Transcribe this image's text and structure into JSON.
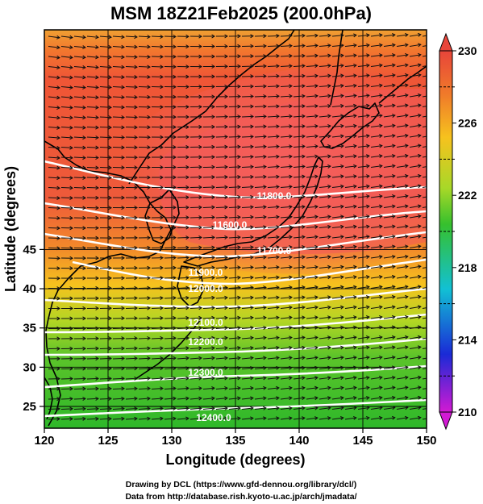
{
  "title": "MSM 18Z21Feb2025 (200.0hPa)",
  "axes": {
    "xlabel": "Longitude (degrees)",
    "ylabel": "Latitude  (degrees)",
    "x_ticks": [
      "120",
      "125",
      "130",
      "135",
      "140",
      "145",
      "150"
    ],
    "y_ticks": [
      "45",
      "40",
      "35",
      "30",
      "25"
    ]
  },
  "colorbar": {
    "labels": [
      "230",
      "226",
      "222",
      "218",
      "214",
      "210"
    ],
    "colors": {
      "c230": "#e8453a",
      "c226": "#f6c21e",
      "c222": "#36c02d",
      "c218": "#12c0d4",
      "c214": "#1a2ad6",
      "c210": "#d21ad3"
    }
  },
  "contours": {
    "labels": [
      "11800.0",
      "11600.0",
      "11700.0",
      "11900.0",
      "12000.0",
      "12100.0",
      "12200.0",
      "12300.0",
      "12400.0"
    ],
    "color": "#ffffff"
  },
  "credits": {
    "line1": "Drawing by DCL (https://www.gfd-dennou.org/library/dcl/)",
    "line2": "Data from http://database.rish.kyoto-u.ac.jp/arch/jmadata/"
  }
}
